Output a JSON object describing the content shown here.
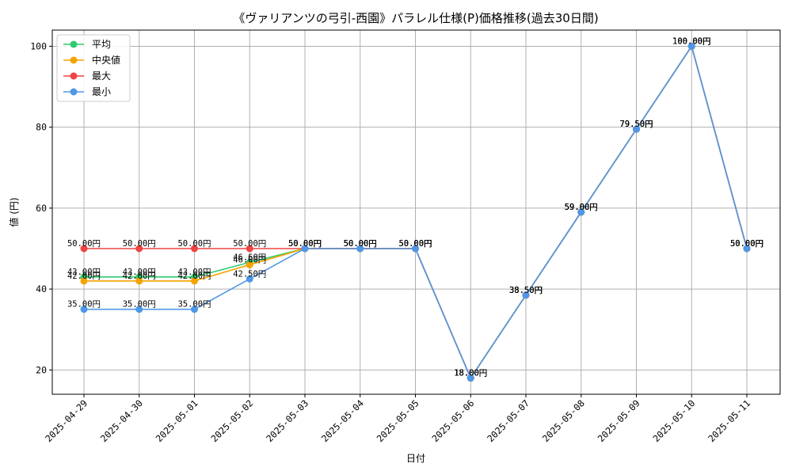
{
  "chart_data": {
    "type": "line",
    "title": "《ヴァリアンツの弓引-西園》パラレル仕様(P)価格推移(過去30日間)",
    "xlabel": "日付",
    "ylabel": "値 (円)",
    "categories": [
      "2025-04-29",
      "2025-04-30",
      "2025-05-01",
      "2025-05-02",
      "2025-05-03",
      "2025-05-04",
      "2025-05-05",
      "2025-05-06",
      "2025-05-07",
      "2025-05-08",
      "2025-05-09",
      "2025-05-10",
      "2025-05-11"
    ],
    "ylim": [
      14,
      104
    ],
    "yticks": [
      20,
      40,
      60,
      80,
      100
    ],
    "grid": true,
    "legend_position": "top-left",
    "series": [
      {
        "name": "平均",
        "color": "#2ecc71",
        "values": [
          43.0,
          43.0,
          43.0,
          46.6,
          50.0,
          50.0,
          50.0,
          18.0,
          38.5,
          59.0,
          79.5,
          100.0,
          50.0
        ],
        "labels": [
          "43.00円",
          "43.00円",
          "43.00円",
          "46.60円",
          "50.00円",
          "50.00円",
          "50.00円",
          "18.00円",
          "38.50円",
          "59.00円",
          "79.50円",
          "100.00円",
          "50.00円"
        ]
      },
      {
        "name": "中央値",
        "color": "#f5a300",
        "values": [
          42.0,
          42.0,
          42.0,
          46.0,
          50.0,
          50.0,
          50.0,
          18.0,
          38.5,
          59.0,
          79.5,
          100.0,
          50.0
        ],
        "labels": [
          "42.00円",
          "42.00円",
          "42.00円",
          "46.00円",
          "50.00円",
          "50.00円",
          "50.00円",
          "18.00円",
          "38.50円",
          "59.00円",
          "79.50円",
          "100.00円",
          "50.00円"
        ]
      },
      {
        "name": "最大",
        "color": "#ef4444",
        "values": [
          50.0,
          50.0,
          50.0,
          50.0,
          50.0,
          50.0,
          50.0,
          18.0,
          38.5,
          59.0,
          79.5,
          100.0,
          50.0
        ],
        "labels": [
          "50.00円",
          "50.00円",
          "50.00円",
          "50.00円",
          "50.00円",
          "50.00円",
          "50.00円",
          "18.00円",
          "38.50円",
          "59.00円",
          "79.50円",
          "100.00円",
          "50.00円"
        ]
      },
      {
        "name": "最小",
        "color": "#4f97e8",
        "values": [
          35.0,
          35.0,
          35.0,
          42.5,
          50.0,
          50.0,
          50.0,
          18.0,
          38.5,
          59.0,
          79.5,
          100.0,
          50.0
        ],
        "labels": [
          "35.00円",
          "35.00円",
          "35.00円",
          "42.50円",
          "50.00円",
          "50.00円",
          "50.00円",
          "18.00円",
          "38.50円",
          "59.00円",
          "79.50円",
          "100.00円",
          "50.00円"
        ]
      }
    ]
  }
}
